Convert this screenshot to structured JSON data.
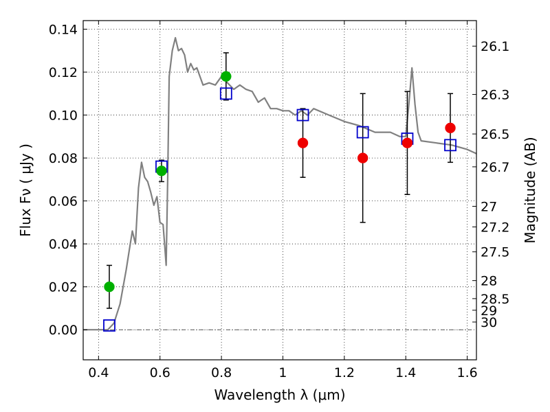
{
  "chart_data": {
    "type": "scatter",
    "xlabel": "Wavelength  λ (μm)",
    "ylabel": "Flux  Fν  ( μJy )",
    "y2label": "Magnitude (AB)",
    "xlim": [
      0.35,
      1.63
    ],
    "ylim": [
      -0.014,
      0.144
    ],
    "grid": true,
    "x_ticks": [
      0.4,
      0.6,
      0.8,
      1.0,
      1.2,
      1.4,
      1.6
    ],
    "x_tick_labels": [
      "0.4",
      "0.6",
      "0.8",
      "1",
      "1.2",
      "1.4",
      "1.6"
    ],
    "y_ticks": [
      0.0,
      0.02,
      0.04,
      0.06,
      0.08,
      0.1,
      0.12,
      0.14
    ],
    "y_tick_labels": [
      "0.00",
      "0.02",
      "0.04",
      "0.06",
      "0.08",
      "0.10",
      "0.12",
      "0.14"
    ],
    "y2_tick_labels": [
      "26.1",
      "26.3",
      "26.5",
      "26.7",
      "27",
      "27.2",
      "27.5",
      "28",
      "28.5",
      "29",
      "30"
    ],
    "y2_tick_flux": [
      0.1321,
      0.1096,
      0.0912,
      0.0759,
      0.0575,
      0.0479,
      0.0363,
      0.0229,
      0.0145,
      0.0091,
      0.0036
    ],
    "series": [
      {
        "kind": "line",
        "color": "#808080",
        "x": [
          0.35,
          0.43,
          0.45,
          0.47,
          0.49,
          0.5,
          0.51,
          0.52,
          0.53,
          0.54,
          0.55,
          0.56,
          0.57,
          0.58,
          0.59,
          0.6,
          0.61,
          0.615,
          0.62,
          0.625,
          0.63,
          0.64,
          0.65,
          0.66,
          0.67,
          0.68,
          0.69,
          0.7,
          0.71,
          0.72,
          0.74,
          0.76,
          0.78,
          0.8,
          0.82,
          0.84,
          0.86,
          0.88,
          0.9,
          0.92,
          0.94,
          0.96,
          0.98,
          1.0,
          1.02,
          1.04,
          1.06,
          1.08,
          1.1,
          1.15,
          1.2,
          1.25,
          1.3,
          1.35,
          1.38,
          1.4,
          1.41,
          1.42,
          1.43,
          1.44,
          1.45,
          1.5,
          1.55,
          1.6,
          1.63
        ],
        "y": [
          0.0,
          0.0,
          0.003,
          0.012,
          0.028,
          0.037,
          0.046,
          0.04,
          0.066,
          0.078,
          0.071,
          0.069,
          0.064,
          0.058,
          0.062,
          0.05,
          0.049,
          0.04,
          0.03,
          0.07,
          0.118,
          0.13,
          0.136,
          0.13,
          0.131,
          0.128,
          0.12,
          0.124,
          0.121,
          0.122,
          0.114,
          0.115,
          0.114,
          0.118,
          0.115,
          0.112,
          0.114,
          0.112,
          0.111,
          0.106,
          0.108,
          0.103,
          0.103,
          0.102,
          0.102,
          0.1,
          0.102,
          0.1,
          0.103,
          0.1,
          0.097,
          0.095,
          0.092,
          0.092,
          0.09,
          0.09,
          0.105,
          0.122,
          0.105,
          0.092,
          0.088,
          0.087,
          0.086,
          0.084,
          0.082
        ]
      },
      {
        "kind": "open-square",
        "color": "#0000cc",
        "x": [
          0.435,
          0.605,
          0.815,
          1.065,
          1.26,
          1.405,
          1.545
        ],
        "y": [
          0.002,
          0.076,
          0.11,
          0.1,
          0.092,
          0.089,
          0.086
        ]
      },
      {
        "kind": "filled-circle",
        "color": "#00b000",
        "x": [
          0.435,
          0.605,
          0.815
        ],
        "y": [
          0.02,
          0.074,
          0.118
        ],
        "yerr": [
          0.01,
          0.005,
          0.011
        ]
      },
      {
        "kind": "filled-circle",
        "color": "#ee0000",
        "x": [
          1.065,
          1.26,
          1.405,
          1.545
        ],
        "y": [
          0.087,
          0.08,
          0.087,
          0.094
        ],
        "yerr": [
          0.016,
          0.03,
          0.024,
          0.016
        ]
      }
    ]
  }
}
